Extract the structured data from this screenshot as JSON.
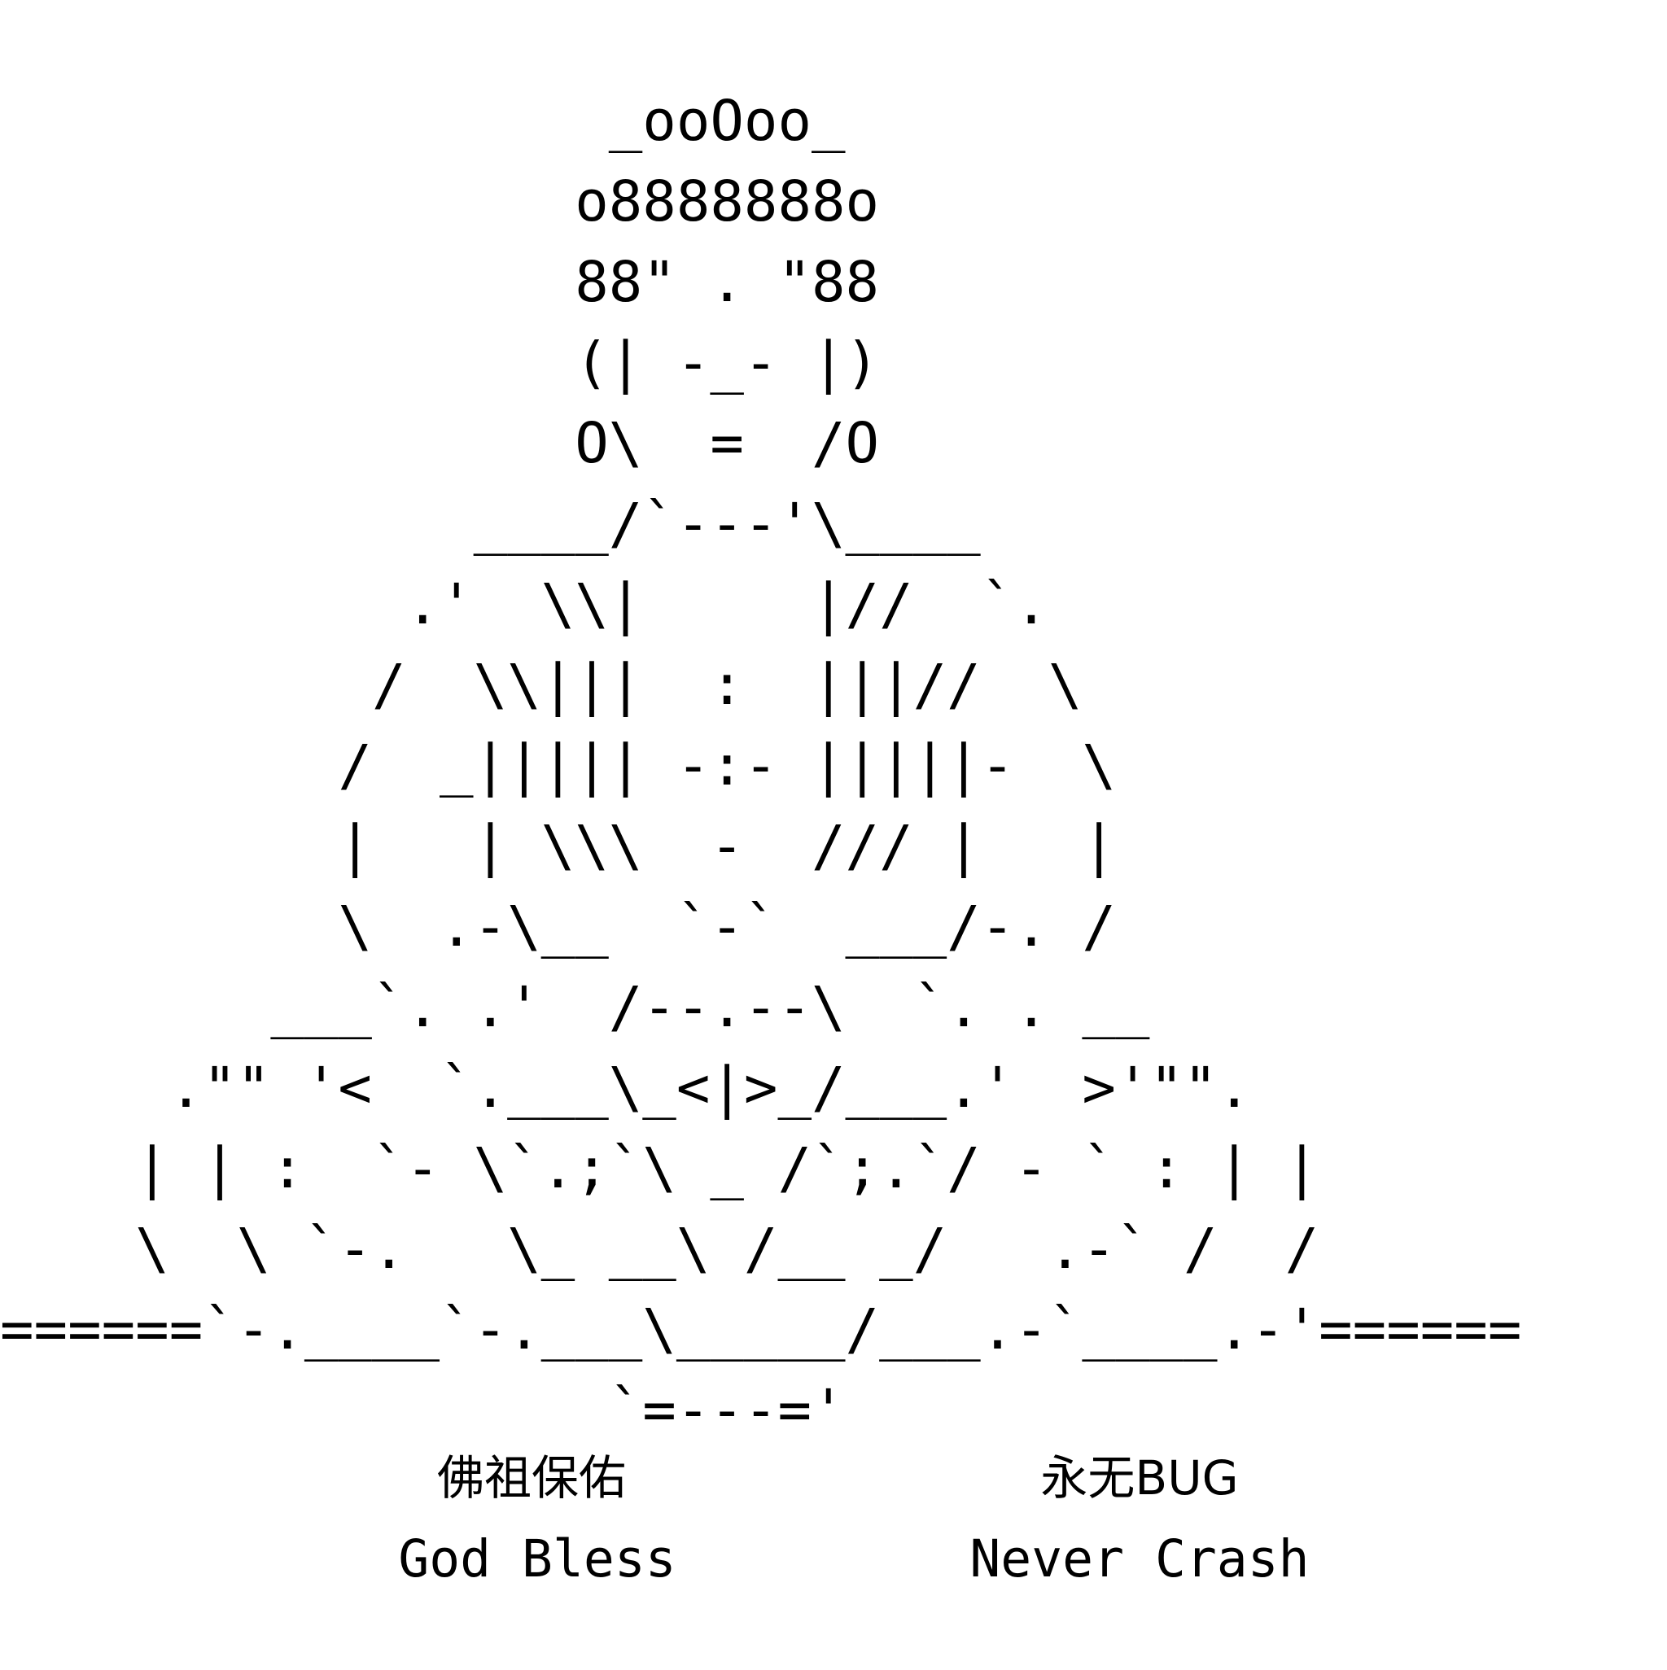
{
  "art": {
    "lines": [
      "                  _ooOoo_",
      "                 o8888888o",
      "                 88\" . \"88",
      "                 (| -_- |)",
      "                 O\\  =  /O",
      "              ____/`---'\\____",
      "            .'  \\\\|     |//  `.",
      "           /  \\\\|||  :  |||//  \\",
      "          /  _||||| -:- |||||-  \\",
      "          |   | \\\\\\  -  /// |   |",
      "          \\  .-\\__  `-`  ___/-. /",
      "        ___`. .'  /--.--\\  `. . __",
      "     .\"\" '<  `.___\\_<|>_/___.'  >'\"\".",
      "    | | :  `- \\`.;`\\ _ /`;.`/ - ` : | |",
      "    \\  \\ `-.   \\_ __\\ /__ _/   .-` /  /",
      "======`-.____`-.___\\_____/___.-`____.-'======",
      "                  `=---='"
    ]
  },
  "blessing": {
    "left_zh": "佛祖保佑",
    "right_zh": "永无BUG",
    "left_en": "God Bless",
    "right_en": "Never Crash"
  },
  "colors": {
    "background": "#ffffff",
    "text": "#000000"
  }
}
